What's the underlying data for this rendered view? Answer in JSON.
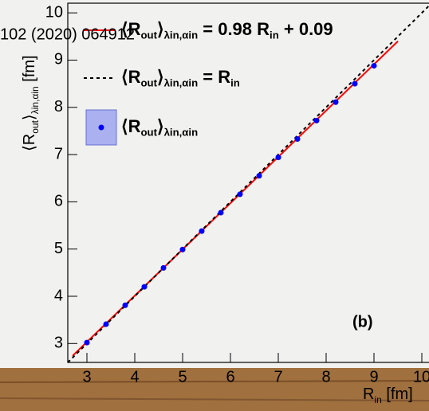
{
  "chart_data": {
    "type": "scatter",
    "overlay_text": "102 (2020) 064912",
    "annotation": "(b)",
    "xlabel_parts": [
      "R",
      "in",
      " [fm]"
    ],
    "ylabel_parts": [
      "⟨R",
      "out",
      "⟩",
      "λin,αin",
      " [fm]"
    ],
    "xlim": [
      2.6,
      10.15
    ],
    "ylim": [
      2.6,
      10.2
    ],
    "xticks": [
      3,
      4,
      5,
      6,
      7,
      8,
      9,
      10
    ],
    "yticks": [
      3,
      4,
      5,
      6,
      7,
      8,
      9,
      10
    ],
    "series": [
      {
        "legend_parts": [
          "⟨R",
          "out",
          "⟩",
          "λin,αin",
          " = 0.98 R",
          "in",
          " + 0.09"
        ],
        "kind": "line",
        "linestyle": "solid",
        "color": "#ff0000",
        "x": [
          2.7,
          9.5
        ],
        "values": [
          2.74,
          9.4
        ]
      },
      {
        "legend_parts": [
          "⟨R",
          "out",
          "⟩",
          "λin,αin",
          " = R",
          "in"
        ],
        "kind": "line",
        "linestyle": "dashed",
        "color": "#000000",
        "x": [
          2.6,
          10.15
        ],
        "values": [
          2.6,
          10.15
        ]
      },
      {
        "legend_parts": [
          "⟨R",
          "out",
          "⟩",
          "λin,αin"
        ],
        "kind": "scatter",
        "color": "#0000ff",
        "x": [
          3.0,
          3.4,
          3.8,
          4.2,
          4.6,
          5.0,
          5.4,
          5.8,
          6.2,
          6.6,
          7.0,
          7.4,
          7.8,
          8.2,
          8.6,
          9.0
        ],
        "values": [
          3.02,
          3.41,
          3.81,
          4.2,
          4.6,
          4.99,
          5.38,
          5.77,
          6.16,
          6.55,
          6.94,
          7.33,
          7.72,
          8.11,
          8.5,
          8.88
        ]
      }
    ]
  }
}
